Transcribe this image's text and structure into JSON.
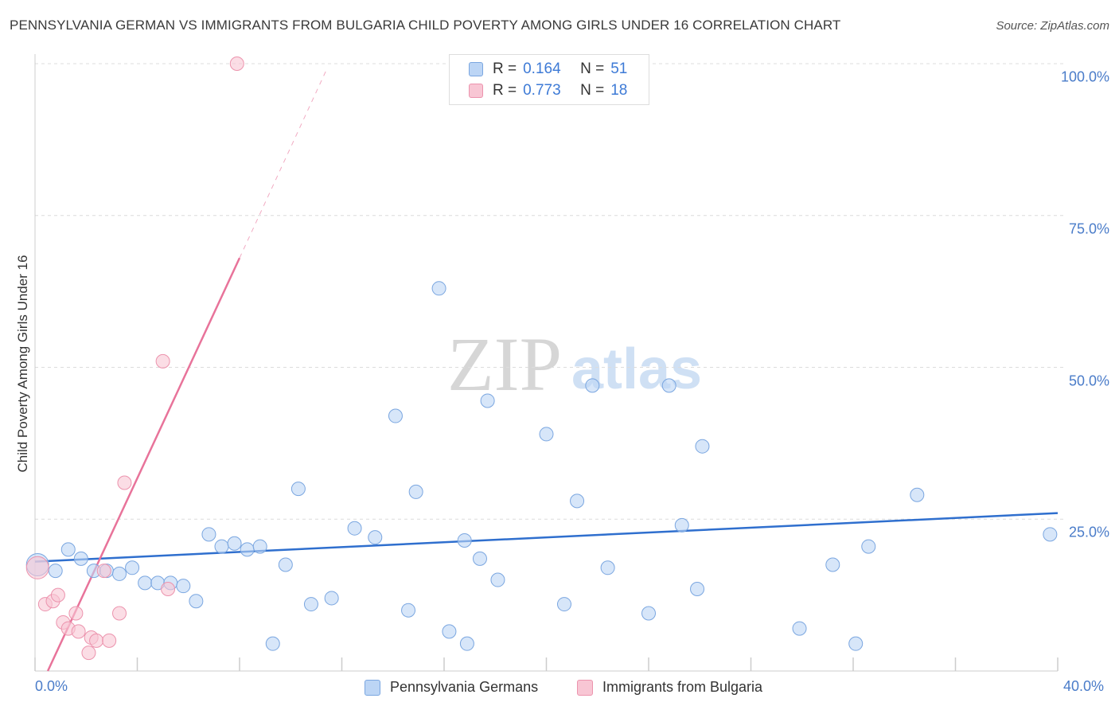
{
  "title": "PENNSYLVANIA GERMAN VS IMMIGRANTS FROM BULGARIA CHILD POVERTY AMONG GIRLS UNDER 16 CORRELATION CHART",
  "source": "Source: ZipAtlas.com",
  "watermark": {
    "zip": "ZIP",
    "atlas": "atlas"
  },
  "legend": {
    "blue": {
      "r_label": "R =",
      "r_value": "0.164",
      "n_label": "N =",
      "n_value": "51"
    },
    "pink": {
      "r_label": "R =",
      "r_value": "0.773",
      "n_label": "N =",
      "n_value": "18"
    }
  },
  "bottom_legend": {
    "blue": "Pennsylvania Germans",
    "pink": "Immigrants from Bulgaria"
  },
  "colors": {
    "blue_fill": "#bcd5f5",
    "blue_stroke": "#7aa6e0",
    "blue_line": "#2f6fce",
    "pink_fill": "#f8c6d4",
    "pink_stroke": "#ec93ad",
    "pink_line": "#e8739a",
    "grid": "#dcdcdc",
    "tick_text": "#4a7cc9"
  },
  "chart_data": {
    "type": "scatter",
    "title": "PENNSYLVANIA GERMAN VS IMMIGRANTS FROM BULGARIA CHILD POVERTY AMONG GIRLS UNDER 16 CORRELATION CHART",
    "xlabel": "",
    "ylabel": "Child Poverty Among Girls Under 16",
    "xlim": [
      0,
      40
    ],
    "ylim": [
      0,
      100
    ],
    "x_tick_labels": [
      "0.0%",
      "40.0%"
    ],
    "y_ticks": [
      25,
      50,
      75,
      100
    ],
    "y_tick_labels": [
      "25.0%",
      "50.0%",
      "75.0%",
      "100.0%"
    ],
    "grid": true,
    "series": [
      {
        "name": "Pennsylvania Germans",
        "color": "blue",
        "points": [
          {
            "x": 0.1,
            "y": 17.5,
            "big": true
          },
          {
            "x": 0.8,
            "y": 16.5
          },
          {
            "x": 1.3,
            "y": 20.0
          },
          {
            "x": 1.8,
            "y": 18.5
          },
          {
            "x": 2.3,
            "y": 16.5
          },
          {
            "x": 2.8,
            "y": 16.5
          },
          {
            "x": 3.3,
            "y": 16.0
          },
          {
            "x": 3.8,
            "y": 17.0
          },
          {
            "x": 4.3,
            "y": 14.5
          },
          {
            "x": 4.8,
            "y": 14.5
          },
          {
            "x": 5.3,
            "y": 14.5
          },
          {
            "x": 5.8,
            "y": 14.0
          },
          {
            "x": 6.3,
            "y": 11.5
          },
          {
            "x": 6.8,
            "y": 22.5
          },
          {
            "x": 7.3,
            "y": 20.5
          },
          {
            "x": 7.8,
            "y": 21.0
          },
          {
            "x": 8.3,
            "y": 20.0
          },
          {
            "x": 8.8,
            "y": 20.5
          },
          {
            "x": 9.3,
            "y": 4.5
          },
          {
            "x": 9.8,
            "y": 17.5
          },
          {
            "x": 10.3,
            "y": 30.0
          },
          {
            "x": 10.8,
            "y": 11.0
          },
          {
            "x": 11.6,
            "y": 12.0
          },
          {
            "x": 12.5,
            "y": 23.5
          },
          {
            "x": 13.3,
            "y": 22.0
          },
          {
            "x": 14.1,
            "y": 42.0
          },
          {
            "x": 14.6,
            "y": 10.0
          },
          {
            "x": 14.9,
            "y": 29.5
          },
          {
            "x": 15.8,
            "y": 63.0
          },
          {
            "x": 16.2,
            "y": 6.5
          },
          {
            "x": 16.8,
            "y": 21.5
          },
          {
            "x": 16.9,
            "y": 4.5
          },
          {
            "x": 17.4,
            "y": 18.5
          },
          {
            "x": 17.7,
            "y": 44.5
          },
          {
            "x": 18.1,
            "y": 15.0
          },
          {
            "x": 20.0,
            "y": 39.0
          },
          {
            "x": 20.7,
            "y": 11.0
          },
          {
            "x": 21.2,
            "y": 28.0
          },
          {
            "x": 21.8,
            "y": 47.0
          },
          {
            "x": 22.4,
            "y": 17.0
          },
          {
            "x": 24.0,
            "y": 9.5
          },
          {
            "x": 24.8,
            "y": 47.0
          },
          {
            "x": 25.3,
            "y": 24.0
          },
          {
            "x": 25.9,
            "y": 13.5
          },
          {
            "x": 26.1,
            "y": 37.0
          },
          {
            "x": 29.9,
            "y": 7.0
          },
          {
            "x": 31.2,
            "y": 17.5
          },
          {
            "x": 32.1,
            "y": 4.5
          },
          {
            "x": 32.6,
            "y": 20.5
          },
          {
            "x": 34.5,
            "y": 29.0
          },
          {
            "x": 39.7,
            "y": 22.5
          }
        ],
        "trend": {
          "x1": 0,
          "y1": 18.0,
          "x2": 40,
          "y2": 26.0
        }
      },
      {
        "name": "Immigrants from Bulgaria",
        "color": "pink",
        "points": [
          {
            "x": 0.1,
            "y": 17.0,
            "big": true
          },
          {
            "x": 0.4,
            "y": 11.0
          },
          {
            "x": 0.7,
            "y": 11.5
          },
          {
            "x": 0.9,
            "y": 12.5
          },
          {
            "x": 1.1,
            "y": 8.0
          },
          {
            "x": 1.3,
            "y": 7.0
          },
          {
            "x": 1.6,
            "y": 9.5
          },
          {
            "x": 1.7,
            "y": 6.5
          },
          {
            "x": 2.1,
            "y": 3.0
          },
          {
            "x": 2.2,
            "y": 5.5
          },
          {
            "x": 2.4,
            "y": 5.0
          },
          {
            "x": 2.7,
            "y": 16.5
          },
          {
            "x": 2.9,
            "y": 5.0
          },
          {
            "x": 3.3,
            "y": 9.5
          },
          {
            "x": 3.5,
            "y": 31.0
          },
          {
            "x": 5.0,
            "y": 51.0
          },
          {
            "x": 5.2,
            "y": 13.5
          },
          {
            "x": 7.9,
            "y": 100.0
          }
        ],
        "trend": {
          "x1": 0.5,
          "y1": 0,
          "x2": 8.0,
          "y2": 68.0
        },
        "trend_extension": {
          "x1": 8.0,
          "y1": 68.0,
          "x2": 11.4,
          "y2": 99.0
        }
      }
    ]
  }
}
